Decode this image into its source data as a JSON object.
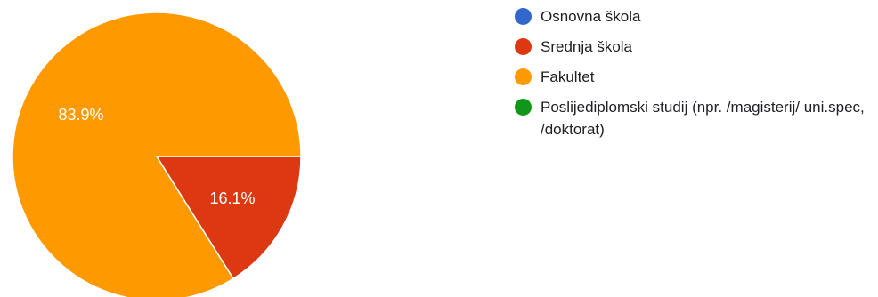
{
  "chart_data": {
    "type": "pie",
    "title": "",
    "legend_position": "right",
    "slices": [
      {
        "label": "Osnovna škola",
        "value": 0,
        "color": "#3366cc",
        "display": ""
      },
      {
        "label": "Srednja škola",
        "value": 16.1,
        "color": "#dc3912",
        "display": "16.1%"
      },
      {
        "label": "Fakultet",
        "value": 83.9,
        "color": "#ff9900",
        "display": "83.9%"
      },
      {
        "label": "Poslijediplomski studij (npr. /magisterij/ uni.spec, /doktorat)",
        "value": 0,
        "color": "#109618",
        "display": ""
      }
    ]
  }
}
